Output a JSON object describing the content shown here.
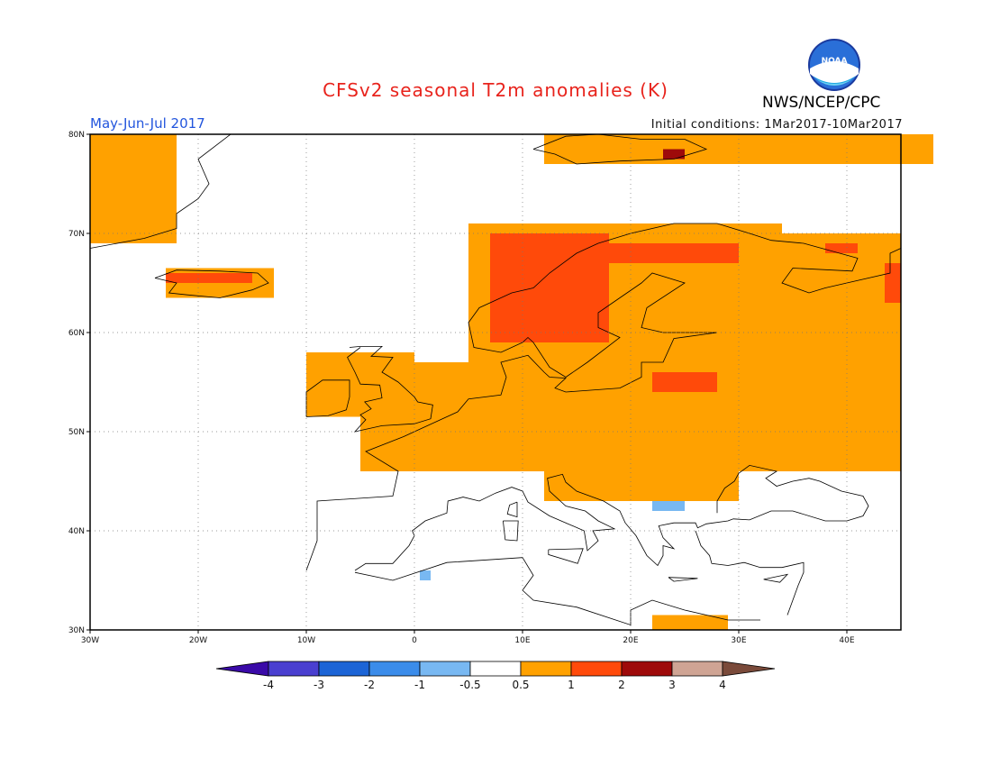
{
  "title": "CFSv2 seasonal T2m anomalies (K)",
  "period": "May-Jun-Jul 2017",
  "initial_conditions": "Initial conditions: 1Mar2017-10Mar2017",
  "agency": "NWS/NCEP/CPC",
  "logo_text": "NOAA",
  "map": {
    "lon_range": [
      -30,
      45
    ],
    "lat_range": [
      30,
      80
    ],
    "lon_ticks": [
      {
        "value": -30,
        "label": "30W"
      },
      {
        "value": -20,
        "label": "20W"
      },
      {
        "value": -10,
        "label": "10W"
      },
      {
        "value": 0,
        "label": "0"
      },
      {
        "value": 10,
        "label": "10E"
      },
      {
        "value": 20,
        "label": "20E"
      },
      {
        "value": 30,
        "label": "30E"
      },
      {
        "value": 40,
        "label": "40E"
      }
    ],
    "lat_ticks": [
      {
        "value": 30,
        "label": "30N"
      },
      {
        "value": 40,
        "label": "40N"
      },
      {
        "value": 50,
        "label": "50N"
      },
      {
        "value": 60,
        "label": "60N"
      },
      {
        "value": 70,
        "label": "70N"
      },
      {
        "value": 80,
        "label": "80N"
      }
    ]
  },
  "colorbar": {
    "colors": [
      "#3a0aa8",
      "#4a3fd0",
      "#1c64d6",
      "#3b8cea",
      "#78b8f2",
      "#ffffff",
      "#ffa100",
      "#ff4a0a",
      "#9e0a0a",
      "#cfa494",
      "#7a4a3a"
    ],
    "tick_labels": [
      "-4",
      "-3",
      "-2",
      "-1",
      "-0.5",
      "0.5",
      "1",
      "2",
      "3",
      "4"
    ]
  },
  "anomaly_regions": [
    {
      "level": "0.5-1",
      "color": "#ffa100",
      "lon": [
        -30,
        -22
      ],
      "lat": [
        69,
        80
      ]
    },
    {
      "level": "0.5-1",
      "color": "#ffa100",
      "lon": [
        -23,
        -13
      ],
      "lat": [
        63.5,
        66.5
      ]
    },
    {
      "level": "0.5-1",
      "color": "#ffa100",
      "lon": [
        -10,
        0
      ],
      "lat": [
        51.5,
        58
      ]
    },
    {
      "level": "0.5-1",
      "color": "#ffa100",
      "lon": [
        -5,
        45
      ],
      "lat": [
        46,
        57
      ]
    },
    {
      "level": "0.5-1",
      "color": "#ffa100",
      "lon": [
        5,
        34
      ],
      "lat": [
        57,
        71
      ]
    },
    {
      "level": "0.5-1",
      "color": "#ffa100",
      "lon": [
        28,
        45
      ],
      "lat": [
        52,
        70
      ]
    },
    {
      "level": "0.5-1",
      "color": "#ffa100",
      "lon": [
        12,
        30
      ],
      "lat": [
        43,
        46
      ]
    },
    {
      "level": "0.5-1",
      "color": "#ffa100",
      "lon": [
        12,
        48
      ],
      "lat": [
        77,
        80
      ]
    },
    {
      "level": "0.5-1",
      "color": "#ffa100",
      "lon": [
        22,
        29
      ],
      "lat": [
        30,
        31.5
      ]
    },
    {
      "level": "1-2",
      "color": "#ff4a0a",
      "lon": [
        7,
        18
      ],
      "lat": [
        59,
        70
      ]
    },
    {
      "level": "1-2",
      "color": "#ff4a0a",
      "lon": [
        18,
        30
      ],
      "lat": [
        67,
        69
      ]
    },
    {
      "level": "1-2",
      "color": "#ff4a0a",
      "lon": [
        22,
        28
      ],
      "lat": [
        54,
        56
      ]
    },
    {
      "level": "1-2",
      "color": "#ff4a0a",
      "lon": [
        38,
        41
      ],
      "lat": [
        68,
        69
      ]
    },
    {
      "level": "1-2",
      "color": "#ff4a0a",
      "lon": [
        43.5,
        45
      ],
      "lat": [
        63,
        67
      ]
    },
    {
      "level": "1-2",
      "color": "#ff4a0a",
      "lon": [
        -23,
        -15
      ],
      "lat": [
        65,
        66
      ]
    },
    {
      "level": "2-3",
      "color": "#9e0a0a",
      "lon": [
        23,
        25
      ],
      "lat": [
        77.5,
        78.5
      ]
    },
    {
      "level": "-1--0.5",
      "color": "#78b8f2",
      "lon": [
        22,
        25
      ],
      "lat": [
        42,
        43
      ]
    },
    {
      "level": "-1--0.5",
      "color": "#78b8f2",
      "lon": [
        0.5,
        1.5
      ],
      "lat": [
        35,
        36
      ]
    }
  ]
}
